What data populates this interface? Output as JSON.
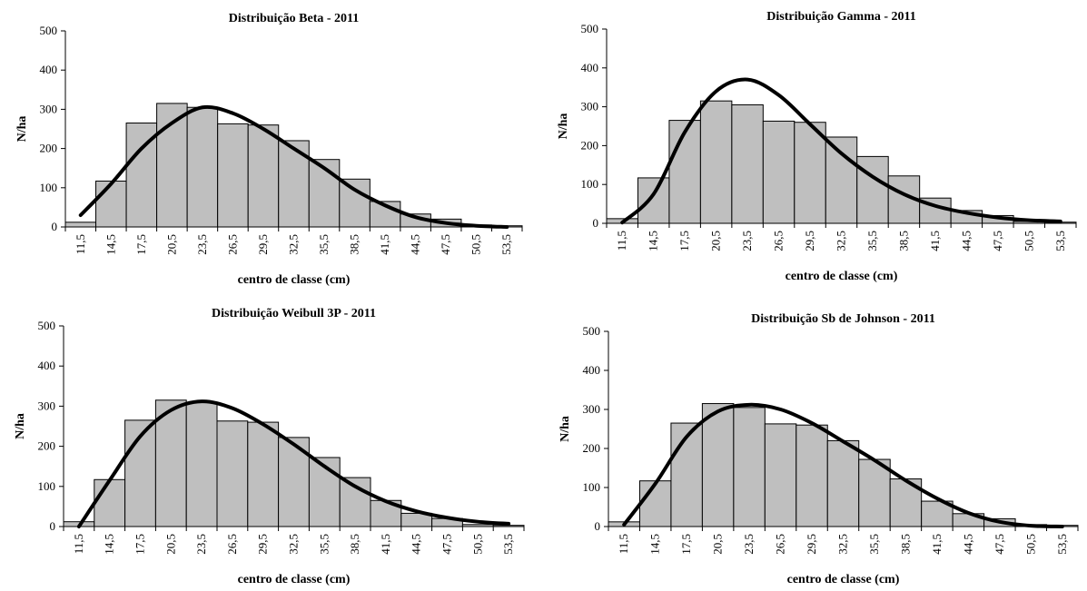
{
  "chart_data": [
    {
      "type": "bar",
      "title": "Distribuição Beta - 2011",
      "xlabel": "centro de classe (cm)",
      "ylabel": "N/ha",
      "ylim": [
        0,
        500
      ],
      "yticks": [
        "0",
        "100",
        "200",
        "300",
        "400",
        "500"
      ],
      "categories": [
        "11,5",
        "14,5",
        "17,5",
        "20,5",
        "23,5",
        "26,5",
        "29,5",
        "32,5",
        "35,5",
        "38,5",
        "41,5",
        "44,5",
        "47,5",
        "50,5",
        "53,5"
      ],
      "values": [
        12,
        117,
        265,
        315,
        305,
        263,
        260,
        220,
        172,
        122,
        65,
        33,
        20,
        5,
        3
      ],
      "curve": [
        30,
        110,
        200,
        265,
        305,
        290,
        250,
        200,
        150,
        95,
        55,
        25,
        10,
        3,
        0
      ]
    },
    {
      "type": "bar",
      "title": "Distribuição Gamma - 2011",
      "xlabel": "centro de classe (cm)",
      "ylabel": "N/ha",
      "ylim": [
        0,
        500
      ],
      "yticks": [
        "0",
        "100",
        "200",
        "300",
        "400",
        "500"
      ],
      "categories": [
        "11,5",
        "14,5",
        "17,5",
        "20,5",
        "23,5",
        "26,5",
        "29,5",
        "32,5",
        "35,5",
        "38,5",
        "41,5",
        "44,5",
        "47,5",
        "50,5",
        "53,5"
      ],
      "values": [
        12,
        117,
        265,
        315,
        305,
        263,
        260,
        222,
        172,
        122,
        65,
        33,
        20,
        5,
        3
      ],
      "curve": [
        2,
        75,
        235,
        340,
        370,
        330,
        255,
        180,
        120,
        75,
        45,
        27,
        15,
        8,
        5
      ]
    },
    {
      "type": "bar",
      "title": "Distribuição Weibull  3P - 2011",
      "xlabel": "centro de classe (cm)",
      "ylabel": "N/ha",
      "ylim": [
        0,
        500
      ],
      "yticks": [
        "0",
        "100",
        "200",
        "300",
        "400",
        "500"
      ],
      "categories": [
        "11,5",
        "14,5",
        "17,5",
        "20,5",
        "23,5",
        "26,5",
        "29,5",
        "32,5",
        "35,5",
        "38,5",
        "41,5",
        "44,5",
        "47,5",
        "50,5",
        "53,5"
      ],
      "values": [
        12,
        117,
        265,
        315,
        310,
        263,
        260,
        222,
        172,
        122,
        65,
        33,
        20,
        5,
        3
      ],
      "curve": [
        0,
        115,
        225,
        290,
        312,
        295,
        255,
        205,
        150,
        100,
        63,
        38,
        22,
        12,
        7
      ]
    },
    {
      "type": "bar",
      "title": "Distribuição Sb de Johnson -  2011",
      "xlabel": "centro de classe (cm)",
      "ylabel": "N/ha",
      "ylim": [
        0,
        500
      ],
      "yticks": [
        "0",
        "100",
        "200",
        "300",
        "400",
        "500"
      ],
      "categories": [
        "11,5",
        "14,5",
        "17,5",
        "20,5",
        "23,5",
        "26,5",
        "29,5",
        "32,5",
        "35,5",
        "38,5",
        "41,5",
        "44,5",
        "47,5",
        "50,5",
        "53,5"
      ],
      "values": [
        12,
        117,
        265,
        315,
        305,
        263,
        260,
        220,
        172,
        122,
        65,
        33,
        20,
        5,
        3
      ],
      "curve": [
        5,
        110,
        230,
        295,
        312,
        300,
        265,
        218,
        170,
        118,
        72,
        35,
        12,
        2,
        0
      ]
    }
  ]
}
